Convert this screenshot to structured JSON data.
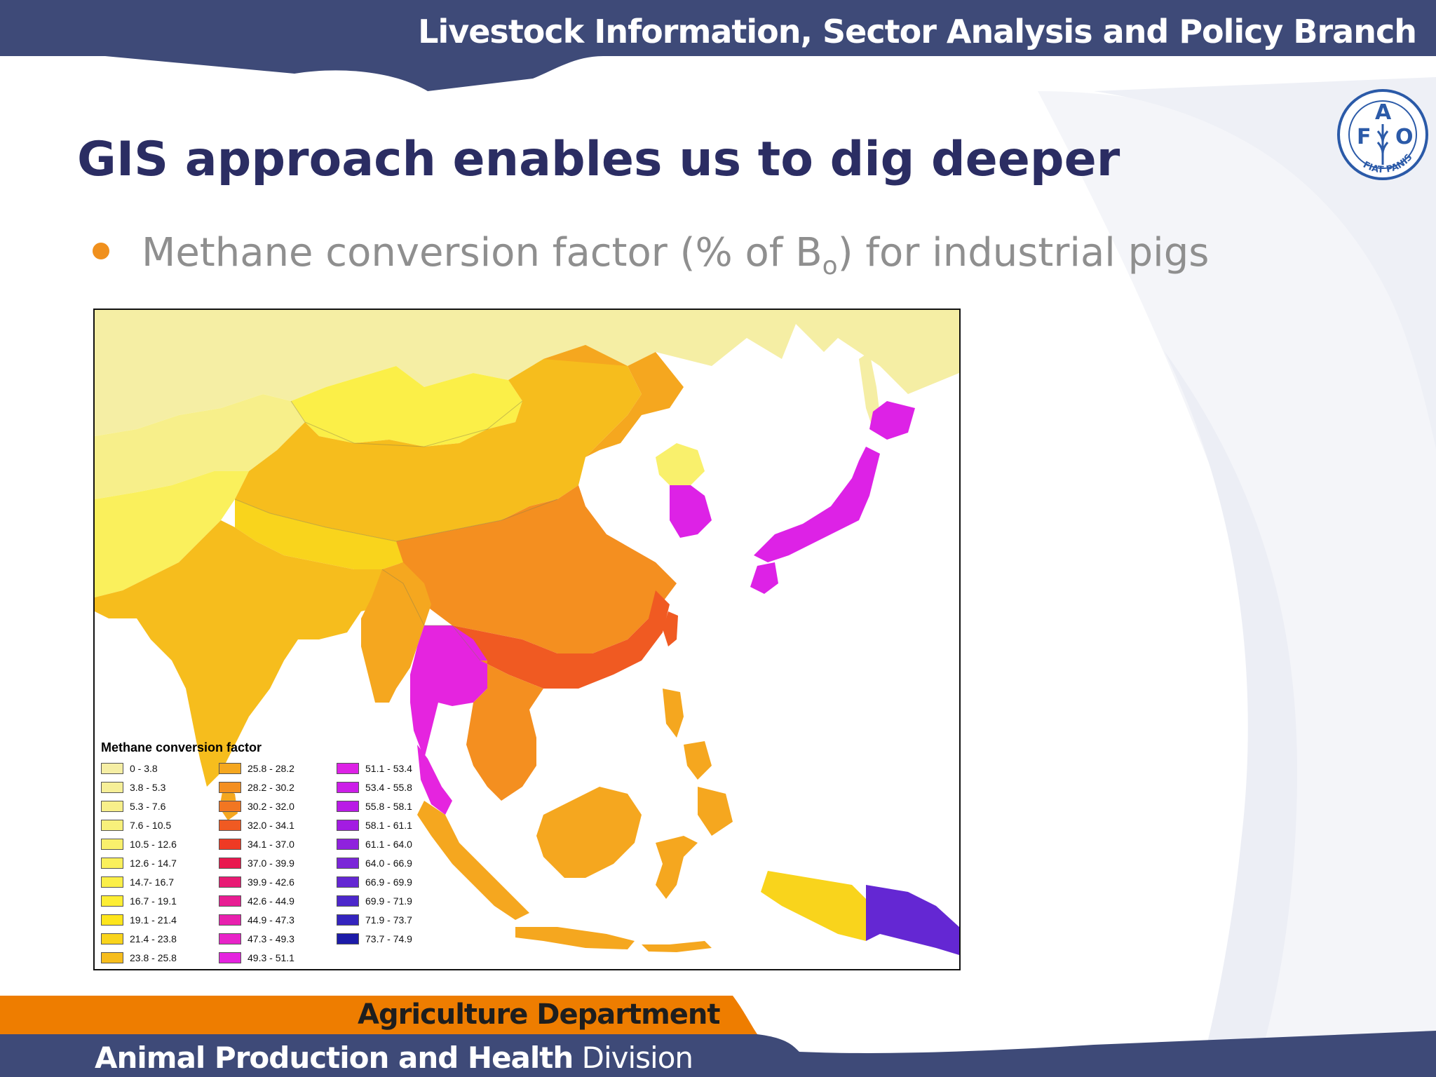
{
  "header": {
    "banner_text": "Livestock Information, Sector Analysis and Policy Branch"
  },
  "logo": {
    "letters": [
      "F",
      "A",
      "O"
    ],
    "motto": "FIAT PANIS"
  },
  "slide": {
    "title": "GIS approach enables us to dig deeper",
    "bullet_main": "Methane conversion factor (% of B",
    "bullet_sub": "o",
    "bullet_end": ") for industrial pigs"
  },
  "legend": {
    "title": "Methane conversion factor",
    "classes": [
      {
        "label": "0 - 3.8",
        "color": "#f5eea4"
      },
      {
        "label": "3.8 - 5.3",
        "color": "#f6ef98"
      },
      {
        "label": "5.3 - 7.6",
        "color": "#f7ef8a"
      },
      {
        "label": "7.6 - 10.5",
        "color": "#f8f07b"
      },
      {
        "label": "10.5 - 12.6",
        "color": "#f9f06c"
      },
      {
        "label": "12.6 - 14.7",
        "color": "#faf05c"
      },
      {
        "label": "14.7- 16.7",
        "color": "#fbef48"
      },
      {
        "label": "16.7 - 19.1",
        "color": "#fdee34"
      },
      {
        "label": "19.1 - 21.4",
        "color": "#fde51c"
      },
      {
        "label": "21.4 - 23.8",
        "color": "#f9d41c"
      },
      {
        "label": "23.8 - 25.8",
        "color": "#f6bd1d"
      },
      {
        "label": "25.8 - 28.2",
        "color": "#f5a71f"
      },
      {
        "label": "28.2 - 30.2",
        "color": "#f48f20"
      },
      {
        "label": "30.2 - 32.0",
        "color": "#f27621"
      },
      {
        "label": "32.0 - 34.1",
        "color": "#f05a22"
      },
      {
        "label": "34.1 - 37.0",
        "color": "#ee3a24"
      },
      {
        "label": "37.0 - 39.9",
        "color": "#e9184f"
      },
      {
        "label": "39.9 - 42.6",
        "color": "#e81a74"
      },
      {
        "label": "42.6 - 44.9",
        "color": "#e81d93"
      },
      {
        "label": "44.9 - 47.3",
        "color": "#e820ae"
      },
      {
        "label": "47.3 - 49.3",
        "color": "#e823c8"
      },
      {
        "label": "49.3 - 51.1",
        "color": "#e524df"
      },
      {
        "label": "51.1 - 53.4",
        "color": "#dd22e6"
      },
      {
        "label": "53.4 - 55.8",
        "color": "#cc1ee8"
      },
      {
        "label": "55.8 - 58.1",
        "color": "#b91be6"
      },
      {
        "label": "58.1 - 61.1",
        "color": "#a31ce2"
      },
      {
        "label": "61.1 - 64.0",
        "color": "#8f22dd"
      },
      {
        "label": "64.0 - 66.9",
        "color": "#7a26d8"
      },
      {
        "label": "66.9 - 69.9",
        "color": "#6427d3"
      },
      {
        "label": "69.9 - 71.9",
        "color": "#4c27cb"
      },
      {
        "label": "71.9 - 73.7",
        "color": "#3424be"
      },
      {
        "label": "73.7 - 74.9",
        "color": "#1c1ba8"
      }
    ]
  },
  "map_regions": [
    {
      "name": "russia-north",
      "color": "#f5eea4"
    },
    {
      "name": "kazakhstan",
      "color": "#f7ef8a"
    },
    {
      "name": "central-asia",
      "color": "#faf05c"
    },
    {
      "name": "mongolia",
      "color": "#fbef48"
    },
    {
      "name": "china-west",
      "color": "#f6bd1d"
    },
    {
      "name": "china-northeast",
      "color": "#f5a71f"
    },
    {
      "name": "china-central",
      "color": "#f48f20"
    },
    {
      "name": "china-south",
      "color": "#f05a22"
    },
    {
      "name": "north-korea",
      "color": "#f9f06c"
    },
    {
      "name": "south-korea",
      "color": "#dd22e6"
    },
    {
      "name": "japan",
      "color": "#dd22e6"
    },
    {
      "name": "taiwan",
      "color": "#f05a22"
    },
    {
      "name": "hainan",
      "color": "#f05a22"
    },
    {
      "name": "india",
      "color": "#f6bd1d"
    },
    {
      "name": "himalaya-tibet",
      "color": "#f9d41c"
    },
    {
      "name": "myanmar",
      "color": "#f5a71f"
    },
    {
      "name": "thailand",
      "color": "#e524df"
    },
    {
      "name": "indochina",
      "color": "#f48f20"
    },
    {
      "name": "sri-lanka",
      "color": "#f5a71f"
    },
    {
      "name": "philippines",
      "color": "#f5a71f"
    },
    {
      "name": "borneo",
      "color": "#f5a71f"
    },
    {
      "name": "sumatra",
      "color": "#f5a71f"
    },
    {
      "name": "java",
      "color": "#f5a71f"
    },
    {
      "name": "sulawesi",
      "color": "#f5a71f"
    },
    {
      "name": "papua-indonesia",
      "color": "#f9d41c"
    },
    {
      "name": "papua-new-guinea",
      "color": "#6427d3"
    }
  ],
  "footer": {
    "department": "Agriculture Department",
    "division_bold": "Animal Production and Health",
    "division_rest": " Division"
  },
  "colors": {
    "navy": "#3e4a78",
    "title_navy": "#2b2d63",
    "orange": "#ee7d00",
    "bullet_orange": "#f0901d",
    "sea": "#ffffff"
  }
}
